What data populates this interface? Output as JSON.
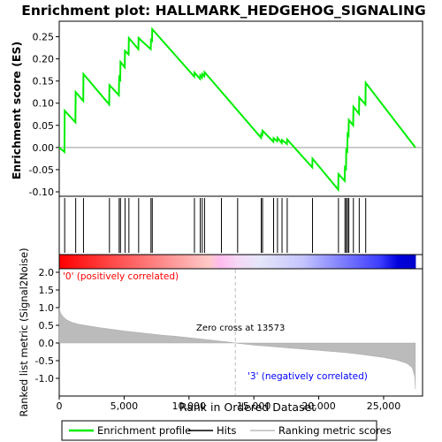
{
  "chart_data": {
    "type": "line",
    "title": "Enrichment plot: HALLMARK_HEDGEHOG_SIGNALING",
    "colors": {
      "enrichment": "#00ee00",
      "hits": "#000000",
      "metric_fill": "#bbbbbb",
      "zero_cross": "#bbbbbb",
      "pos_label": "#ff0000",
      "neg_label": "#0000ff"
    },
    "enrichment": {
      "ylabel": "Enrichment score (ES)",
      "ylim": [
        -0.11,
        0.285
      ],
      "yticks": [
        -0.1,
        -0.05,
        0.0,
        0.05,
        0.1,
        0.15,
        0.2,
        0.25
      ],
      "ytick_labels": [
        "-0.10",
        "-0.05",
        "0.00",
        "0.05",
        "0.10",
        "0.15",
        "0.20",
        "0.25"
      ],
      "profile": [
        [
          0,
          0.0
        ],
        [
          400,
          -0.01
        ],
        [
          420,
          0.083
        ],
        [
          1250,
          0.057
        ],
        [
          1270,
          0.125
        ],
        [
          1850,
          0.105
        ],
        [
          1870,
          0.166
        ],
        [
          3850,
          0.097
        ],
        [
          3870,
          0.141
        ],
        [
          4600,
          0.118
        ],
        [
          4620,
          0.158
        ],
        [
          4700,
          0.154
        ],
        [
          4720,
          0.193
        ],
        [
          5050,
          0.181
        ],
        [
          5070,
          0.218
        ],
        [
          5350,
          0.21
        ],
        [
          5370,
          0.247
        ],
        [
          6100,
          0.222
        ],
        [
          6120,
          0.247
        ],
        [
          7050,
          0.222
        ],
        [
          7070,
          0.243
        ],
        [
          7150,
          0.241
        ],
        [
          7170,
          0.267
        ],
        [
          10400,
          0.16
        ],
        [
          10420,
          0.169
        ],
        [
          10850,
          0.155
        ],
        [
          10870,
          0.163
        ],
        [
          11000,
          0.158
        ],
        [
          11020,
          0.166
        ],
        [
          11180,
          0.161
        ],
        [
          11200,
          0.17
        ],
        [
          15550,
          0.022
        ],
        [
          15570,
          0.03
        ],
        [
          15650,
          0.028
        ],
        [
          15670,
          0.038
        ],
        [
          16500,
          0.013
        ],
        [
          16520,
          0.021
        ],
        [
          16800,
          0.014
        ],
        [
          16820,
          0.022
        ],
        [
          17150,
          0.01
        ],
        [
          17170,
          0.017
        ],
        [
          17550,
          0.008
        ],
        [
          17570,
          0.018
        ],
        [
          19500,
          -0.045
        ],
        [
          19520,
          -0.025
        ],
        [
          21500,
          -0.095
        ],
        [
          21520,
          -0.06
        ],
        [
          22000,
          -0.075
        ],
        [
          22020,
          -0.045
        ],
        [
          22100,
          -0.048
        ],
        [
          22120,
          -0.005
        ],
        [
          22200,
          -0.008
        ],
        [
          22220,
          0.03
        ],
        [
          22300,
          0.027
        ],
        [
          22320,
          0.062
        ],
        [
          22650,
          0.05
        ],
        [
          22670,
          0.092
        ],
        [
          23100,
          0.076
        ],
        [
          23120,
          0.113
        ],
        [
          23600,
          0.097
        ],
        [
          23620,
          0.146
        ],
        [
          27450,
          0.0
        ]
      ]
    },
    "hits": [
      420,
      1270,
      1870,
      3870,
      4620,
      4720,
      5070,
      5370,
      6120,
      7070,
      7170,
      10420,
      10870,
      11020,
      11200,
      12500,
      13750,
      15570,
      15670,
      16520,
      16820,
      17170,
      17570,
      19520,
      21520,
      22020,
      22120,
      22220,
      22320,
      22670,
      23120,
      23620
    ],
    "metric": {
      "ylabel": "Ranked list metric (Signal2Noise)",
      "xlabel": "Rank in Ordered Dataset",
      "xlim": [
        0,
        28000
      ],
      "ylim": [
        -1.5,
        2.1
      ],
      "xticks": [
        0,
        5000,
        10000,
        15000,
        20000,
        25000
      ],
      "xtick_labels": [
        "0",
        "5,000",
        "10,000",
        "15,000",
        "20,000",
        "25,000"
      ],
      "yticks": [
        -1.0,
        -0.5,
        0.0,
        0.5,
        1.0,
        1.5,
        2.0
      ],
      "ytick_labels": [
        "-1.0",
        "-0.5",
        "0.0",
        "0.5",
        "1.0",
        "1.5",
        "2.0"
      ],
      "curve": [
        [
          0,
          1.0
        ],
        [
          100,
          0.85
        ],
        [
          300,
          0.74
        ],
        [
          600,
          0.65
        ],
        [
          1000,
          0.58
        ],
        [
          1500,
          0.53
        ],
        [
          2000,
          0.5
        ],
        [
          3000,
          0.44
        ],
        [
          4000,
          0.39
        ],
        [
          5000,
          0.34
        ],
        [
          6000,
          0.3
        ],
        [
          7000,
          0.26
        ],
        [
          8000,
          0.22
        ],
        [
          9000,
          0.19
        ],
        [
          10000,
          0.15
        ],
        [
          11000,
          0.11
        ],
        [
          12000,
          0.07
        ],
        [
          13000,
          0.03
        ],
        [
          13573,
          0.0
        ],
        [
          14000,
          -0.02
        ],
        [
          15000,
          -0.06
        ],
        [
          16000,
          -0.09
        ],
        [
          17000,
          -0.12
        ],
        [
          18000,
          -0.15
        ],
        [
          19000,
          -0.18
        ],
        [
          20000,
          -0.21
        ],
        [
          21000,
          -0.24
        ],
        [
          22000,
          -0.27
        ],
        [
          23000,
          -0.31
        ],
        [
          24000,
          -0.36
        ],
        [
          25000,
          -0.41
        ],
        [
          26000,
          -0.48
        ],
        [
          26800,
          -0.58
        ],
        [
          27200,
          -0.7
        ],
        [
          27400,
          -0.95
        ],
        [
          27450,
          -1.3
        ]
      ],
      "zero_cross": 13573,
      "zero_cross_label": "Zero cross at 13573",
      "pos_label": "'0' (positively correlated)",
      "neg_label": "'3' (negatively correlated)"
    },
    "legend": {
      "placement": "bottom",
      "items": [
        {
          "label": "Enrichment profile",
          "kind": "line",
          "color": "#00ee00"
        },
        {
          "label": "Hits",
          "kind": "line",
          "color": "#000000"
        },
        {
          "label": "Ranking metric scores",
          "kind": "line",
          "color": "#bbbbbb"
        }
      ]
    }
  }
}
